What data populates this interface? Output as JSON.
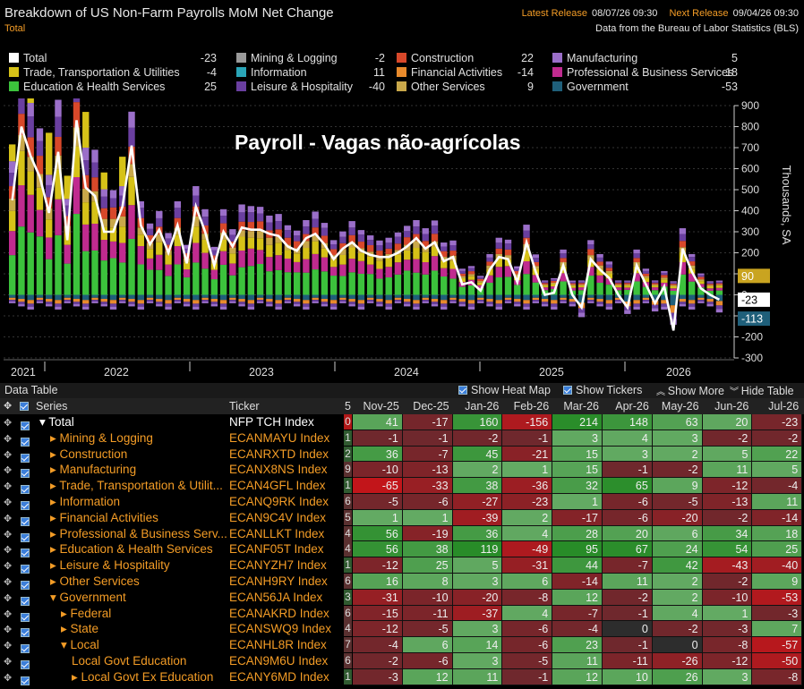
{
  "header": {
    "title": "Breakdown of US Non-Farm Payrolls MoM Net Change",
    "subtitle": "Total",
    "latest_label": "Latest Release",
    "latest_value": "08/07/26 09:30",
    "next_label": "Next Release",
    "next_value": "09/04/26 09:30",
    "source": "Data from the Bureau of Labor Statistics (BLS)"
  },
  "legend": [
    {
      "name": "Total",
      "value": "-23",
      "color": "#ffffff"
    },
    {
      "name": "Mining & Logging",
      "value": "-2",
      "color": "#9a9a9a"
    },
    {
      "name": "Construction",
      "value": "22",
      "color": "#d8482a"
    },
    {
      "name": "Manufacturing",
      "value": "5",
      "color": "#9b6fc9"
    },
    {
      "name": "Trade, Transportation & Utilities",
      "value": "-4",
      "color": "#d6c218"
    },
    {
      "name": "Information",
      "value": "11",
      "color": "#2aa5b8"
    },
    {
      "name": "Financial Activities",
      "value": "-14",
      "color": "#e88a2c"
    },
    {
      "name": "Professional & Business Services",
      "value": "18",
      "color": "#c02b8f"
    },
    {
      "name": "Education & Health Services",
      "value": "25",
      "color": "#3cc23c"
    },
    {
      "name": "Leisure & Hospitality",
      "value": "-40",
      "color": "#6a3fa0"
    },
    {
      "name": "Other Services",
      "value": "9",
      "color": "#c9a84a"
    },
    {
      "name": "Government",
      "value": "-53",
      "color": "#1f5f7a"
    }
  ],
  "overlay_title": "Payroll - Vagas não-agrícolas",
  "chart_data": {
    "type": "bar",
    "stacked": true,
    "axis_label": "Thousands, SA",
    "y_ticks": [
      "900",
      "800",
      "700",
      "600",
      "500",
      "400",
      "300",
      "200",
      "100",
      "0",
      "-100",
      "-200",
      "-300"
    ],
    "ylim": [
      -300,
      900
    ],
    "year_labels": [
      "2021",
      "2022",
      "2023",
      "2024",
      "2025",
      "2026"
    ],
    "callouts": [
      {
        "label": "90",
        "value": 90,
        "color": "#c9a420"
      },
      {
        "label": "-23",
        "value": -23,
        "color": "#ffffff"
      },
      {
        "label": "-113",
        "value": -113,
        "color": "#1f5f7a"
      }
    ],
    "total_line": [
      450,
      800,
      660,
      560,
      390,
      680,
      260,
      830,
      510,
      470,
      300,
      300,
      420,
      710,
      330,
      240,
      310,
      200,
      330,
      150,
      420,
      300,
      140,
      300,
      230,
      320,
      310,
      310,
      290,
      280,
      230,
      210,
      270,
      290,
      240,
      170,
      220,
      250,
      210,
      190,
      180,
      180,
      200,
      230,
      270,
      220,
      250,
      160,
      180,
      50,
      60,
      20,
      120,
      180,
      170,
      60,
      250,
      110,
      0,
      10,
      140,
      0,
      -60,
      170,
      120,
      80,
      0,
      -60,
      140,
      50,
      -40,
      40,
      -170,
      220,
      110,
      30,
      0,
      -23
    ],
    "month_labels": [
      "Nov-25",
      "Dec-25",
      "Jan-26",
      "Feb-26",
      "Mar-26",
      "Apr-26",
      "May-26",
      "Jun-26",
      "Jul-26"
    ]
  },
  "data_table": {
    "label": "Data Table",
    "show_heat_map": "Show Heat Map",
    "show_tickers": "Show Tickers",
    "show_more": "Show More",
    "hide_table": "Hide Table",
    "col_series": "Series",
    "col_ticker": "Ticker",
    "col_flag": "5",
    "rows": [
      {
        "name": "Total",
        "ticker": "NFP TCH Index",
        "flag": "0",
        "indent": 1,
        "arrow": "▾",
        "total": true,
        "values": [
          "41",
          "-17",
          "160",
          "-156",
          "214",
          "148",
          "63",
          "20",
          "-23"
        ]
      },
      {
        "name": "Mining & Logging",
        "ticker": "ECANMAYU Index",
        "flag": "1",
        "indent": 2,
        "arrow": "▸",
        "values": [
          "-1",
          "-1",
          "-2",
          "-1",
          "3",
          "4",
          "3",
          "-2",
          "-2"
        ]
      },
      {
        "name": "Construction",
        "ticker": "ECANRXTD Index",
        "flag": "2",
        "indent": 2,
        "arrow": "▸",
        "values": [
          "36",
          "-7",
          "45",
          "-21",
          "15",
          "3",
          "2",
          "5",
          "22"
        ]
      },
      {
        "name": "Manufacturing",
        "ticker": "ECANX8NS Index",
        "flag": "9",
        "indent": 2,
        "arrow": "▸",
        "values": [
          "-10",
          "-13",
          "2",
          "1",
          "15",
          "-1",
          "-2",
          "11",
          "5"
        ]
      },
      {
        "name": "Trade, Transportation & Utilit...",
        "ticker": "ECAN4GFL Index",
        "flag": "1",
        "indent": 2,
        "arrow": "▸",
        "values": [
          "-65",
          "-33",
          "38",
          "-36",
          "32",
          "65",
          "9",
          "-12",
          "-4"
        ]
      },
      {
        "name": "Information",
        "ticker": "ECANQ9RK Index",
        "flag": "6",
        "indent": 2,
        "arrow": "▸",
        "values": [
          "-5",
          "-6",
          "-27",
          "-23",
          "1",
          "-6",
          "-5",
          "-13",
          "11"
        ]
      },
      {
        "name": "Financial Activities",
        "ticker": "ECAN9C4V Index",
        "flag": "5",
        "indent": 2,
        "arrow": "▸",
        "values": [
          "1",
          "1",
          "-39",
          "2",
          "-17",
          "-6",
          "-20",
          "-2",
          "-14"
        ]
      },
      {
        "name": "Professional & Business Serv...",
        "ticker": "ECANLLKT Index",
        "flag": "4",
        "indent": 2,
        "arrow": "▸",
        "values": [
          "56",
          "-19",
          "36",
          "4",
          "28",
          "20",
          "6",
          "34",
          "18"
        ]
      },
      {
        "name": "Education & Health Services",
        "ticker": "ECANF05T Index",
        "flag": "4",
        "indent": 2,
        "arrow": "▸",
        "values": [
          "56",
          "38",
          "119",
          "-49",
          "95",
          "67",
          "24",
          "54",
          "25"
        ]
      },
      {
        "name": "Leisure & Hospitality",
        "ticker": "ECANYZH7 Index",
        "flag": "1",
        "indent": 2,
        "arrow": "▸",
        "values": [
          "-12",
          "25",
          "5",
          "-31",
          "44",
          "-7",
          "42",
          "-43",
          "-40"
        ]
      },
      {
        "name": "Other Services",
        "ticker": "ECANH9RY Index",
        "flag": "6",
        "indent": 2,
        "arrow": "▸",
        "values": [
          "16",
          "8",
          "3",
          "6",
          "-14",
          "11",
          "2",
          "-2",
          "9"
        ]
      },
      {
        "name": "Government",
        "ticker": "ECAN56JA Index",
        "flag": "3",
        "indent": 2,
        "arrow": "▾",
        "values": [
          "-31",
          "-10",
          "-20",
          "-8",
          "12",
          "-2",
          "2",
          "-10",
          "-53"
        ]
      },
      {
        "name": "Federal",
        "ticker": "ECANAKRD Index",
        "flag": "6",
        "indent": 3,
        "arrow": "▸",
        "values": [
          "-15",
          "-11",
          "-37",
          "4",
          "-7",
          "-1",
          "4",
          "1",
          "-3"
        ]
      },
      {
        "name": "State",
        "ticker": "ECANSWQ9 Index",
        "flag": "4",
        "indent": 3,
        "arrow": "▸",
        "values": [
          "-12",
          "-5",
          "3",
          "-6",
          "-4",
          "0",
          "-2",
          "-3",
          "7"
        ]
      },
      {
        "name": "Local",
        "ticker": "ECANHL8R Index",
        "flag": "7",
        "indent": 3,
        "arrow": "▾",
        "values": [
          "-4",
          "6",
          "14",
          "-6",
          "23",
          "-1",
          "0",
          "-8",
          "-57"
        ]
      },
      {
        "name": "Local Govt Education",
        "ticker": "ECAN9M6U Index",
        "flag": "6",
        "indent": 4,
        "arrow": "",
        "values": [
          "-2",
          "-6",
          "3",
          "-5",
          "11",
          "-11",
          "-26",
          "-12",
          "-50"
        ]
      },
      {
        "name": "Local Govt Ex Education",
        "ticker": "ECANY6MD Index",
        "flag": "1",
        "indent": 4,
        "arrow": "▸",
        "values": [
          "-3",
          "12",
          "11",
          "-1",
          "12",
          "10",
          "26",
          "3",
          "-8"
        ]
      }
    ]
  }
}
